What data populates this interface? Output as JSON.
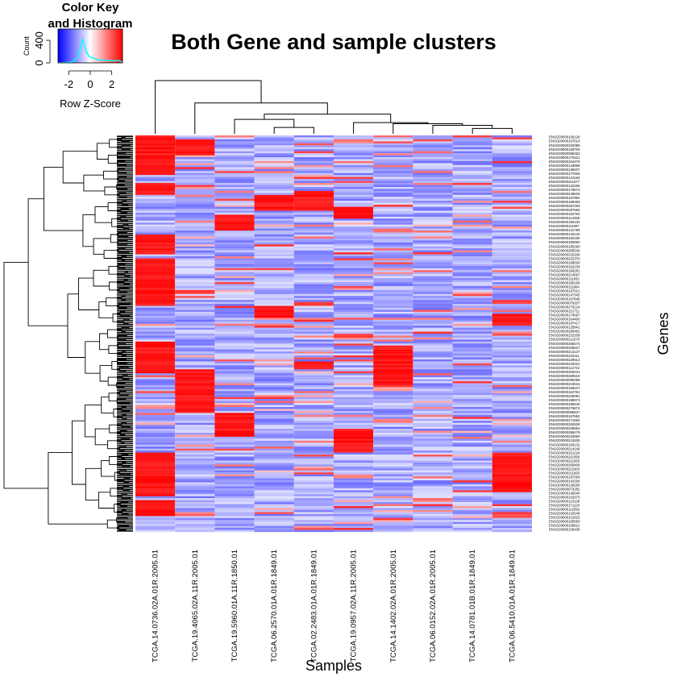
{
  "chart_data": {
    "type": "heatmap",
    "title": "Both Gene and sample clusters",
    "xlabel": "Samples",
    "ylabel": "Genes",
    "color_key": {
      "title_line1": "Color Key",
      "title_line2": "and Histogram",
      "xlabel": "Row Z-Score",
      "ylabel": "Count",
      "x_ticks": [
        "-2",
        "0",
        "2"
      ],
      "x_range": [
        -3,
        3
      ],
      "y_ticks": [
        "0",
        "400"
      ],
      "y_range": [
        0,
        600
      ],
      "low_color": "#0000FF",
      "mid_color": "#FFFFFF",
      "high_color": "#FF0000",
      "density_color": "#00FFFF",
      "density": [
        [
          -3.0,
          0
        ],
        [
          -2.5,
          3
        ],
        [
          -2.0,
          8
        ],
        [
          -1.6,
          25
        ],
        [
          -1.2,
          90
        ],
        [
          -0.9,
          260
        ],
        [
          -0.7,
          420
        ],
        [
          -0.55,
          330
        ],
        [
          -0.35,
          190
        ],
        [
          -0.1,
          110
        ],
        [
          0.3,
          85
        ],
        [
          0.8,
          55
        ],
        [
          1.3,
          45
        ],
        [
          1.8,
          40
        ],
        [
          2.3,
          34
        ],
        [
          2.6,
          45
        ],
        [
          2.9,
          20
        ],
        [
          3.0,
          5
        ]
      ]
    },
    "samples": [
      "TCGA.14.0736.02A.01R.2005.01",
      "TCGA.19.4065.02A.11R.2005.01",
      "TCGA.19.5960.01A.11R.1850.01",
      "TCGA.06.2570.01A.01R.1849.01",
      "TCGA.02.2483.01A.01R.1849.01",
      "TCGA.19.0957.02A.11R.2005.01",
      "TCGA.14.1402.02A.01R.2005.01",
      "TCGA.06.0152.02A.01R.2005.01",
      "TCGA.14.0781.01B.01R.1849.01",
      "TCGA.06.5410.01A.01R.1849.01"
    ],
    "gene_labels": [
      "ENSG00000106128",
      "ENSG00000197614",
      "ENSG00000232098",
      "ENSG00000108700",
      "ENSG00000080453",
      "ENSG00000170421",
      "ENSG00000154478",
      "ENSG00000143869",
      "ENSG00000138207",
      "ENSG00000177606",
      "ENSG00000124184",
      "ENSG00000211677",
      "ENSG00000132465",
      "ENSG00000179873",
      "ENSG00000246526",
      "ENSG00000157992",
      "ENSG00000186493",
      "ENSG00000287293",
      "ENSG00000287560",
      "ENSG00000162792",
      "ENSG00000114456",
      "ENSG00000150132",
      "ENSG00000111087",
      "ENSG00000131789",
      "ENSG00000143125",
      "ENSG00000160180",
      "ENSG00000180850",
      "ENSG00000185290",
      "ENSG00000285540",
      "ENSG00000232209",
      "ENSG00000232370",
      "ENSG00000168530",
      "ENSG00000162239",
      "ENSG00000166281",
      "ENSG00000214697",
      "ENSG00000111832",
      "ENSG00000185184",
      "ENSG00000111664",
      "ENSG00000187621",
      "ENSG00000147345",
      "ENSG00000167849",
      "ENSG00000079207",
      "ENSG00000279124",
      "ENSG00000151711",
      "ENSG00000174697",
      "ENSG00000164400",
      "ENSG00000187417",
      "ENSG00000125841",
      "ENSG00000286481",
      "ENSG00000232208",
      "ENSG00000211670",
      "ENSG00000258274",
      "ENSG00000206627",
      "ENSG00000213137",
      "ENSG00000232111",
      "ENSG00000229514",
      "ENSG00000242021",
      "ENSG00000112722",
      "ENSG00000250041",
      "ENSG00000250518",
      "ENSG00000099399",
      "ENSG00000223515",
      "ENSG00000186647",
      "ENSG00000162762",
      "ENSG00000226081",
      "ENSG00000198573",
      "ENSG00000185640",
      "ENSG00000275874",
      "ENSG00000066637",
      "ENSG00000167552",
      "ENSG00000271584",
      "ENSG00000282539",
      "ENSG00000229654",
      "ENSG00000286479",
      "ENSG00000232560",
      "ENSG00000241825",
      "ENSG00000106132",
      "ENSG00000214146",
      "ENSG00000151224",
      "ENSG00000211059",
      "ENSG00000211650",
      "ENSG00000269404",
      "ENSG00000211663",
      "ENSG00000211660",
      "ENSG00000187064",
      "ENSG00000143196",
      "ENSG00000128258",
      "ENSG00000073282",
      "ENSG00000146046",
      "ENSG00000102970",
      "ENSG00000113139",
      "ENSG00000171124",
      "ENSG00000112592",
      "ENSG00000142549",
      "ENSG00000101825",
      "ENSG00000160580",
      "ENSG00000108821",
      "ENSG00000135438"
    ],
    "num_gene_rows": 200,
    "sample_dendrogram": {
      "leaf_order": [
        0,
        1,
        2,
        3,
        4,
        5,
        6,
        7,
        8,
        9
      ],
      "merges": [
        [
          3,
          4,
          0.12
        ],
        [
          8,
          9,
          0.1
        ],
        [
          7,
          11,
          0.16
        ],
        [
          6,
          12,
          0.19
        ],
        [
          5,
          13,
          0.21
        ],
        [
          2,
          10,
          0.27
        ],
        [
          15,
          14,
          0.37
        ],
        [
          1,
          16,
          0.58
        ],
        [
          0,
          17,
          1.0
        ]
      ]
    },
    "colors": {
      "background": "#FFFFFF",
      "text": "#000000",
      "dendrogram": "#000000"
    }
  }
}
